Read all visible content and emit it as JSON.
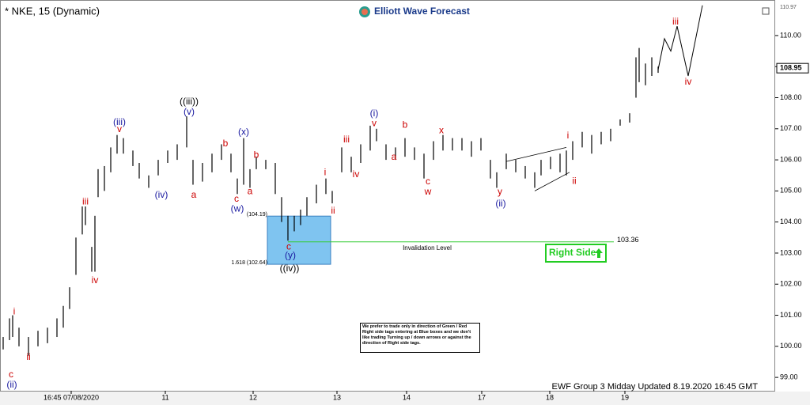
{
  "chart_data": {
    "type": "range-bar",
    "title": "* NKE, 15 (Dynamic)",
    "logo": "Elliott Wave Forecast",
    "footer": "EWF Group 3 Midday Updated 8.19.2020 16:45 GMT",
    "disclaimer": "We prefer to trade only in direction of Green / Red Right side tags entering at Blue boxes and we don't like trading Turning up / down arrows or against the direction of Right side tags.",
    "right_side_tag": "Right Side",
    "color": "#000000",
    "x": [
      1,
      3,
      4,
      6,
      9,
      12,
      15,
      18,
      20,
      22,
      24,
      26,
      27,
      29,
      30,
      31,
      33,
      35,
      37,
      39,
      42,
      44,
      47,
      50,
      53,
      56,
      59,
      61,
      64,
      67,
      70,
      73,
      75,
      77,
      79,
      81,
      84,
      87,
      89,
      91,
      93,
      95,
      97,
      100,
      103,
      105,
      108,
      111,
      114,
      117,
      119,
      122,
      125,
      128,
      131,
      134,
      137,
      140,
      143,
      146,
      149,
      152,
      155,
      157,
      160,
      163,
      166,
      169,
      171,
      174,
      177,
      179,
      181,
      184,
      187,
      190,
      193,
      196,
      199,
      201,
      202,
      204,
      206,
      208
    ],
    "low": [
      99.9,
      100.2,
      100.3,
      100.0,
      99.7,
      100.0,
      100.1,
      100.3,
      100.6,
      101.2,
      102.3,
      103.6,
      103.9,
      102.4,
      102.4,
      104.8,
      105.0,
      105.6,
      106.2,
      106.2,
      105.8,
      105.4,
      105.1,
      105.5,
      105.9,
      106.0,
      106.4,
      105.2,
      105.3,
      105.6,
      106.0,
      105.6,
      104.9,
      105.2,
      105.1,
      105.7,
      105.7,
      104.9,
      104.0,
      103.4,
      103.7,
      103.9,
      104.2,
      104.6,
      104.9,
      104.6,
      105.6,
      105.6,
      105.9,
      106.3,
      106.6,
      106.0,
      106.0,
      106.1,
      106.0,
      105.4,
      106.0,
      106.3,
      106.3,
      106.3,
      106.1,
      106.3,
      105.4,
      105.1,
      105.7,
      105.6,
      105.4,
      105.1,
      105.5,
      105.7,
      105.6,
      105.5,
      106.0,
      106.4,
      106.2,
      106.5,
      106.6,
      107.1,
      107.2,
      108.0,
      108.5,
      108.4,
      108.7,
      108.8
    ],
    "high": [
      100.3,
      100.9,
      101.0,
      100.6,
      100.3,
      100.5,
      100.6,
      100.9,
      101.3,
      101.9,
      103.5,
      104.5,
      104.5,
      103.2,
      104.2,
      105.7,
      105.8,
      106.4,
      106.8,
      106.7,
      106.3,
      105.9,
      105.5,
      106.0,
      106.3,
      106.5,
      107.4,
      106.0,
      105.9,
      106.2,
      106.5,
      106.2,
      105.4,
      106.7,
      105.7,
      106.1,
      106.0,
      105.9,
      104.8,
      104.2,
      104.2,
      104.4,
      104.8,
      105.2,
      105.4,
      105.0,
      106.4,
      106.1,
      106.5,
      107.1,
      107.0,
      106.5,
      106.4,
      106.7,
      106.4,
      106.2,
      106.6,
      106.8,
      106.7,
      106.7,
      106.6,
      106.7,
      106.0,
      105.6,
      106.2,
      106.0,
      105.8,
      105.6,
      106.0,
      106.1,
      106.2,
      106.3,
      106.6,
      106.9,
      106.8,
      106.9,
      107.0,
      107.3,
      107.5,
      109.3,
      109.6,
      109.1,
      109.3,
      109.0
    ],
    "projection": {
      "x": [
        208,
        210,
        212,
        214,
        217.5,
        222
      ],
      "values": [
        108.9,
        109.9,
        109.5,
        110.3,
        108.7,
        110.97
      ]
    },
    "trendlines": [
      {
        "x": [
          160,
          179
        ],
        "values": [
          105.95,
          106.4
        ]
      },
      {
        "x": [
          169,
          180
        ],
        "values": [
          105.0,
          105.6
        ]
      }
    ],
    "blue_box": {
      "x": [
        84.5,
        104.5
      ],
      "values": [
        104.19,
        102.64
      ],
      "labels": [
        "(104.19)",
        "1.618 (102.64)"
      ],
      "color": "#7fc4f0"
    },
    "invalidation": {
      "value": 103.36,
      "label": "103.36",
      "text": "Invalidation Level",
      "x": [
        91,
        194
      ],
      "color": "#33cc33"
    },
    "current_price": {
      "value": 108.95,
      "label": "108.95"
    },
    "top_price": {
      "value": 110.97,
      "label": "110.97"
    },
    "annotations": [
      {
        "text": "c",
        "x": 3.5,
        "y": 99.08,
        "color": "#cc0000"
      },
      {
        "text": "(ii)",
        "x": 3.75,
        "y": 98.75,
        "color": "#1a1aa0"
      },
      {
        "text": "i",
        "x": 4.5,
        "y": 101.11,
        "color": "#cc0000"
      },
      {
        "text": "ii",
        "x": 9,
        "y": 99.64,
        "color": "#cc0000"
      },
      {
        "text": "iii",
        "x": 27,
        "y": 104.65,
        "color": "#cc0000"
      },
      {
        "text": "iv",
        "x": 30,
        "y": 102.11,
        "color": "#cc0000"
      },
      {
        "text": "(iii)",
        "x": 37.75,
        "y": 107.2,
        "color": "#1a1aa0"
      },
      {
        "text": "v",
        "x": 37.75,
        "y": 106.98,
        "color": "#cc0000"
      },
      {
        "text": "(iv)",
        "x": 51,
        "y": 104.86,
        "color": "#1a1aa0"
      },
      {
        "text": "((iii))",
        "x": 59.75,
        "y": 107.86,
        "color": "#000000"
      },
      {
        "text": "(v)",
        "x": 59.75,
        "y": 107.53,
        "color": "#1a1aa0"
      },
      {
        "text": "a",
        "x": 61.25,
        "y": 104.86,
        "color": "#cc0000"
      },
      {
        "text": "b",
        "x": 71.25,
        "y": 106.51,
        "color": "#cc0000"
      },
      {
        "text": "c",
        "x": 74.75,
        "y": 104.73,
        "color": "#cc0000"
      },
      {
        "text": "(w)",
        "x": 75,
        "y": 104.42,
        "color": "#1a1aa0"
      },
      {
        "text": "(x)",
        "x": 77,
        "y": 106.89,
        "color": "#1a1aa0"
      },
      {
        "text": "a",
        "x": 79,
        "y": 104.98,
        "color": "#cc0000"
      },
      {
        "text": "b",
        "x": 81,
        "y": 106.15,
        "color": "#cc0000"
      },
      {
        "text": "c",
        "x": 91.25,
        "y": 103.2,
        "color": "#cc0000"
      },
      {
        "text": "(y)",
        "x": 91.75,
        "y": 102.92,
        "color": "#1a1aa0"
      },
      {
        "text": "((iv))",
        "x": 91.5,
        "y": 102.49,
        "color": "#000000"
      },
      {
        "text": "i",
        "x": 102.75,
        "y": 105.59,
        "color": "#cc0000"
      },
      {
        "text": "ii",
        "x": 105.25,
        "y": 104.35,
        "color": "#cc0000"
      },
      {
        "text": "iii",
        "x": 109.5,
        "y": 106.64,
        "color": "#cc0000"
      },
      {
        "text": "iv",
        "x": 112.5,
        "y": 105.52,
        "color": "#cc0000"
      },
      {
        "text": "(i)",
        "x": 118.25,
        "y": 107.48,
        "color": "#1a1aa0"
      },
      {
        "text": "v",
        "x": 118.25,
        "y": 107.17,
        "color": "#cc0000"
      },
      {
        "text": "a",
        "x": 124.5,
        "y": 106.08,
        "color": "#cc0000"
      },
      {
        "text": "b",
        "x": 128,
        "y": 107.12,
        "color": "#cc0000"
      },
      {
        "text": "c",
        "x": 135.25,
        "y": 105.29,
        "color": "#cc0000"
      },
      {
        "text": "w",
        "x": 135.25,
        "y": 104.96,
        "color": "#cc0000"
      },
      {
        "text": "x",
        "x": 139.5,
        "y": 106.94,
        "color": "#cc0000"
      },
      {
        "text": "y",
        "x": 158,
        "y": 104.96,
        "color": "#cc0000"
      },
      {
        "text": "(ii)",
        "x": 158.25,
        "y": 104.58,
        "color": "#1a1aa0"
      },
      {
        "text": "i",
        "x": 179.5,
        "y": 106.77,
        "color": "#cc0000"
      },
      {
        "text": "ii",
        "x": 181.5,
        "y": 105.31,
        "color": "#cc0000"
      },
      {
        "text": "iii",
        "x": 213.5,
        "y": 110.43,
        "color": "#cc0000"
      },
      {
        "text": "iv",
        "x": 217.5,
        "y": 108.5,
        "color": "#cc0000"
      }
    ],
    "xlim": [
      0,
      245
    ],
    "xticks": [
      {
        "value": 22.5,
        "label": "16:45 07/08/2020"
      },
      {
        "value": 52.25,
        "label": "11"
      },
      {
        "value": 80,
        "label": "12"
      },
      {
        "value": 106.5,
        "label": "13"
      },
      {
        "value": 128.5,
        "label": "14"
      },
      {
        "value": 152.25,
        "label": "17"
      },
      {
        "value": 173.75,
        "label": "18"
      },
      {
        "value": 197.5,
        "label": "19"
      }
    ],
    "ylim": [
      98.57,
      110.94
    ],
    "yticks": [
      {
        "value": 99,
        "label": "99.00"
      },
      {
        "value": 100,
        "label": "100.00"
      },
      {
        "value": 101,
        "label": "101.00"
      },
      {
        "value": 102,
        "label": "102.00"
      },
      {
        "value": 103,
        "label": "103.00"
      },
      {
        "value": 104,
        "label": "104.00"
      },
      {
        "value": 105,
        "label": "105.00"
      },
      {
        "value": 106,
        "label": "106.00"
      },
      {
        "value": 107,
        "label": "107.00"
      },
      {
        "value": 108,
        "label": "108.00"
      },
      {
        "value": 109,
        "label": "109.00"
      },
      {
        "value": 110,
        "label": "110.00"
      }
    ]
  }
}
